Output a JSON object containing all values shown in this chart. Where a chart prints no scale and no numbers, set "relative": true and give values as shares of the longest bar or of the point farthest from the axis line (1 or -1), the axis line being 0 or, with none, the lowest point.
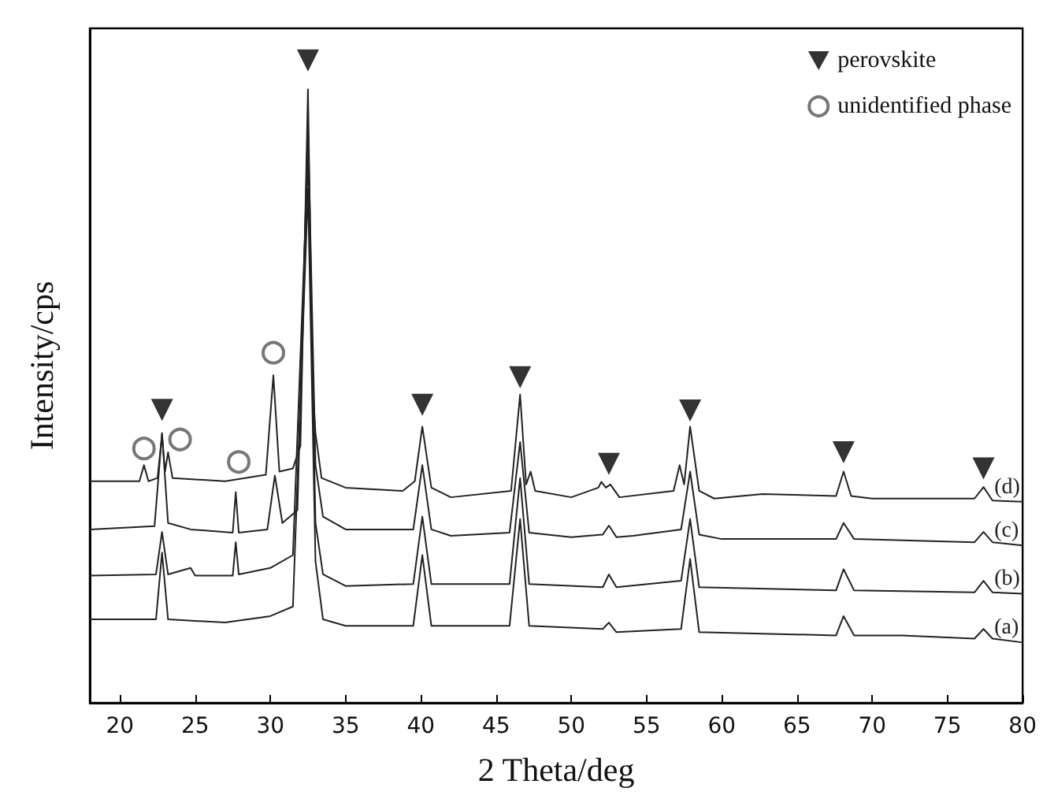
{
  "chart_data": {
    "type": "line",
    "relative": true,
    "xlabel": "2 Theta/deg",
    "ylabel": "Intensity/cps",
    "xlim": [
      18,
      80
    ],
    "xticks": [
      20,
      25,
      30,
      35,
      40,
      45,
      50,
      55,
      60,
      65,
      70,
      75,
      80
    ],
    "legend": "top right",
    "grid": false,
    "marker": "none",
    "line_style": "solid",
    "tick_labels": "x",
    "series": [
      {
        "name": "(d)",
        "color": "#222222",
        "x": [
          18,
          21.3,
          21.6,
          21.9,
          22.5,
          22.8,
          23.0,
          23.2,
          23.5,
          27,
          29.7,
          30.2,
          30.6,
          31.5,
          32.0,
          32.5,
          32.8,
          33.0,
          33.4,
          35,
          38.8,
          39.6,
          40.1,
          40.7,
          42,
          46.0,
          46.6,
          47.0,
          47.3,
          47.6,
          50,
          51.8,
          52.0,
          52.3,
          52.6,
          53.2,
          56.8,
          57.2,
          57.5,
          57.9,
          58.5,
          59.5,
          62.7,
          67.6,
          68.1,
          68.6,
          70,
          76.8,
          77.4,
          78,
          80
        ],
        "values": [
          0.345,
          0.345,
          0.37,
          0.345,
          0.35,
          0.417,
          0.36,
          0.39,
          0.35,
          0.345,
          0.355,
          0.51,
          0.36,
          0.365,
          0.4,
          0.955,
          0.5,
          0.42,
          0.35,
          0.335,
          0.33,
          0.345,
          0.43,
          0.335,
          0.32,
          0.33,
          0.48,
          0.34,
          0.36,
          0.33,
          0.32,
          0.335,
          0.344,
          0.335,
          0.34,
          0.32,
          0.33,
          0.37,
          0.34,
          0.43,
          0.33,
          0.318,
          0.325,
          0.322,
          0.36,
          0.322,
          0.318,
          0.318,
          0.336,
          0.315,
          0.313
        ]
      },
      {
        "name": "(c)",
        "color": "#222222",
        "x": [
          18,
          22.3,
          22.8,
          23.2,
          24.7,
          27.5,
          27.7,
          27.9,
          29.8,
          30.3,
          30.8,
          31.8,
          32.5,
          33.0,
          33.5,
          35,
          39.5,
          40.1,
          40.7,
          42,
          45.9,
          46.6,
          47.2,
          50,
          52.1,
          52.5,
          53,
          54.1,
          57.3,
          57.9,
          58.5,
          60,
          67.6,
          68.1,
          68.8,
          76.8,
          77.4,
          78,
          80
        ],
        "values": [
          0.27,
          0.275,
          0.42,
          0.28,
          0.27,
          0.265,
          0.328,
          0.265,
          0.27,
          0.354,
          0.28,
          0.3,
          0.9,
          0.37,
          0.29,
          0.27,
          0.27,
          0.37,
          0.27,
          0.26,
          0.265,
          0.406,
          0.265,
          0.258,
          0.262,
          0.276,
          0.258,
          0.26,
          0.27,
          0.36,
          0.262,
          0.255,
          0.255,
          0.28,
          0.255,
          0.25,
          0.266,
          0.25,
          0.245
        ]
      },
      {
        "name": "(b)",
        "color": "#222222",
        "x": [
          18,
          22.4,
          22.8,
          23.2,
          24.7,
          25,
          27.5,
          27.7,
          27.9,
          30,
          31.5,
          32.5,
          33.0,
          33.5,
          35,
          39.5,
          40.1,
          40.7,
          45.9,
          46.6,
          47.2,
          52.1,
          52.5,
          53,
          57.3,
          57.9,
          58.5,
          67.6,
          68.1,
          68.8,
          76.8,
          77.4,
          78,
          80
        ],
        "values": [
          0.198,
          0.2,
          0.266,
          0.2,
          0.21,
          0.198,
          0.198,
          0.25,
          0.2,
          0.21,
          0.23,
          0.85,
          0.28,
          0.2,
          0.182,
          0.185,
          0.29,
          0.185,
          0.185,
          0.35,
          0.185,
          0.18,
          0.2,
          0.18,
          0.19,
          0.286,
          0.18,
          0.175,
          0.208,
          0.175,
          0.172,
          0.19,
          0.172,
          0.17
        ]
      },
      {
        "name": "(a)",
        "color": "#222222",
        "x": [
          18,
          22.4,
          22.8,
          23.2,
          27,
          30,
          31.5,
          32.5,
          33.0,
          33.5,
          35,
          39.5,
          40.1,
          40.7,
          45.9,
          46.6,
          47.2,
          52.1,
          52.5,
          53,
          57.3,
          57.9,
          58.5,
          67.6,
          68.1,
          68.8,
          72,
          76.8,
          77.4,
          78,
          80
        ],
        "values": [
          0.13,
          0.13,
          0.234,
          0.13,
          0.125,
          0.135,
          0.15,
          0.8,
          0.22,
          0.13,
          0.12,
          0.12,
          0.23,
          0.12,
          0.12,
          0.286,
          0.12,
          0.115,
          0.125,
          0.11,
          0.115,
          0.224,
          0.11,
          0.105,
          0.135,
          0.105,
          0.105,
          0.1,
          0.115,
          0.1,
          0.094
        ]
      },
      {
        "name": "perovskite",
        "type": "scatter",
        "marker": "triangle",
        "color": "#000000",
        "x": [
          22.8,
          32.5,
          40.1,
          46.6,
          52.5,
          57.9,
          68.1,
          77.4
        ],
        "values": [
          0.456,
          1.0,
          0.464,
          0.507,
          0.372,
          0.455,
          0.39,
          0.365
        ]
      },
      {
        "name": "unidentified phase",
        "type": "scatter",
        "marker": "circle",
        "color": "#555555",
        "x": [
          21.6,
          24.0,
          27.9,
          30.2
        ],
        "values": [
          0.396,
          0.41,
          0.375,
          0.545
        ]
      }
    ]
  }
}
